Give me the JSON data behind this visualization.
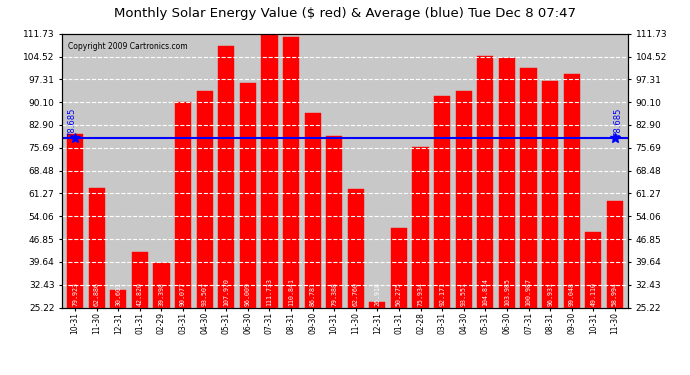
{
  "title": "Monthly Solar Energy Value ($ red) & Average (blue) Tue Dec 8 07:47",
  "copyright": "Copyright 2009 Cartronics.com",
  "average": 78.685,
  "bar_color": "#ff0000",
  "background_color": "#ffffff",
  "plot_bg_color": "#c8c8c8",
  "categories": [
    "10-31",
    "11-30",
    "12-31",
    "01-31",
    "02-29",
    "03-31",
    "04-30",
    "05-31",
    "06-30",
    "07-31",
    "08-31",
    "09-30",
    "10-31",
    "11-30",
    "12-31",
    "01-31",
    "02-28",
    "03-31",
    "04-30",
    "05-31",
    "06-30",
    "07-31",
    "08-31",
    "09-30",
    "10-31",
    "11-30"
  ],
  "values": [
    79.923,
    62.886,
    30.601,
    42.82,
    39.398,
    90.077,
    93.507,
    107.97,
    96.009,
    111.733,
    110.841,
    86.781,
    79.388,
    62.76,
    26.918,
    50.275,
    75.934,
    92.171,
    93.551,
    104.814,
    103.985,
    100.987,
    96.931,
    99.048,
    49.11,
    58.994
  ],
  "yticks": [
    25.22,
    32.43,
    39.64,
    46.85,
    54.06,
    61.27,
    68.48,
    75.69,
    82.9,
    90.1,
    97.31,
    104.52,
    111.73
  ],
  "ylim_min": 25.22,
  "ylim_max": 111.73,
  "avg_label": "78.685",
  "grid_color": "#ffffff",
  "grid_linestyle": "--",
  "value_label_fontsize": 4.8,
  "xlabel_fontsize": 5.5,
  "ylabel_fontsize": 6.5,
  "title_fontsize": 9.5,
  "copyright_fontsize": 5.5
}
